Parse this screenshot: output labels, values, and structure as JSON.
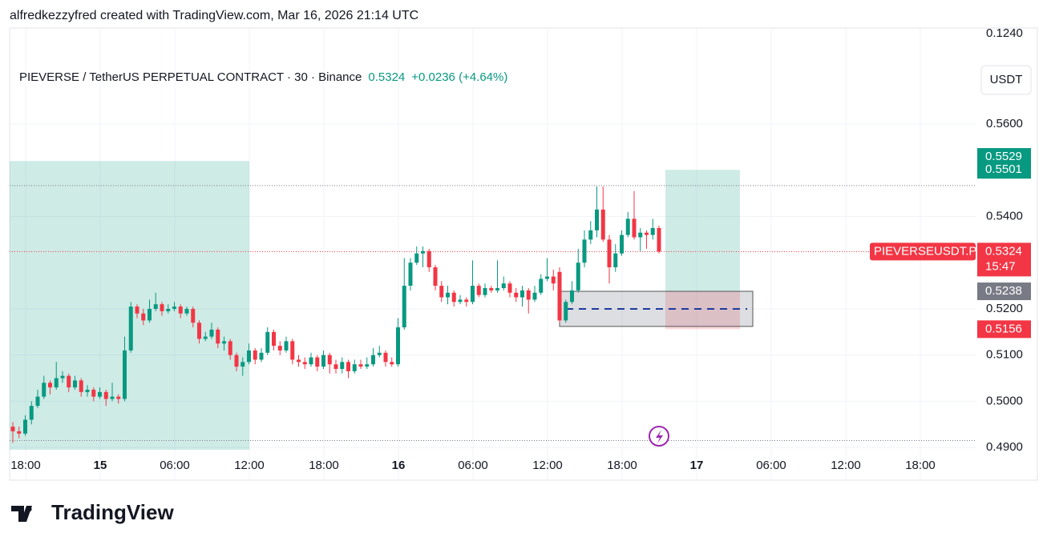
{
  "attribution": "alfredkezzyfred created with TradingView.com, Mar 16, 2026 21:14 UTC",
  "brand": "TradingView",
  "currency_button": "USDT",
  "top_label": "0.1240",
  "chart_data": {
    "type": "candlestick",
    "title": "PIEVERSE / TetherUS PERPETUAL CONTRACT · 30 · Binance",
    "last_price": "0.5324",
    "change": "+0.0236 (+4.64%)",
    "up_color": "#089981",
    "down_color": "#f23645",
    "categories": [
      "18:00",
      "15",
      "06:00",
      "12:00",
      "18:00",
      "16",
      "06:00",
      "12:00",
      "18:00",
      "17",
      "06:00",
      "12:00",
      "18:00"
    ],
    "bold_categories": [
      "15",
      "16",
      "17"
    ],
    "ylim": [
      0.4895,
      0.5808
    ],
    "yticks": [
      {
        "value": 0.56,
        "label": "0.5600"
      },
      {
        "value": 0.54,
        "label": "0.5400"
      },
      {
        "value": 0.52,
        "label": "0.5200"
      },
      {
        "value": 0.51,
        "label": "0.5100"
      },
      {
        "value": 0.5,
        "label": "0.5000"
      },
      {
        "value": 0.49,
        "label": "0.4900"
      }
    ],
    "grid": true,
    "dotted_lines": [
      0.5467,
      0.4915
    ],
    "zones": [
      {
        "top": 0.552,
        "bottom": 0.4895,
        "color": "#089981"
      },
      {
        "top": 0.5501,
        "bottom": 0.5238,
        "color": "#089981"
      },
      {
        "top": 0.5238,
        "bottom": 0.5156,
        "color": "#f23645"
      }
    ],
    "range_box": {
      "top": 0.5238,
      "bottom": 0.5162,
      "mid": 0.52
    },
    "price_labels": [
      {
        "value": 0.5529,
        "color": "#089981"
      },
      {
        "value": 0.5501,
        "color": "#089981"
      },
      {
        "value": 0.5238,
        "color": "#787b86"
      },
      {
        "value": 0.5156,
        "color": "#f23645"
      }
    ],
    "symbol_label": "PIEVERSEUSDT.P",
    "countdown": "15:47",
    "current_price": 0.5324,
    "candles": [
      [
        0.4945,
        0.4955,
        0.491,
        0.4935
      ],
      [
        0.4935,
        0.4945,
        0.492,
        0.493
      ],
      [
        0.493,
        0.497,
        0.4925,
        0.496
      ],
      [
        0.496,
        0.5,
        0.495,
        0.499
      ],
      [
        0.499,
        0.5025,
        0.4985,
        0.501
      ],
      [
        0.501,
        0.5055,
        0.5005,
        0.504
      ],
      [
        0.504,
        0.5045,
        0.5015,
        0.503
      ],
      [
        0.503,
        0.5085,
        0.5025,
        0.505
      ],
      [
        0.505,
        0.5065,
        0.504,
        0.5055
      ],
      [
        0.5055,
        0.506,
        0.502,
        0.503
      ],
      [
        0.503,
        0.5055,
        0.5025,
        0.5045
      ],
      [
        0.5045,
        0.505,
        0.501,
        0.502
      ],
      [
        0.502,
        0.5035,
        0.501,
        0.5025
      ],
      [
        0.5025,
        0.503,
        0.5,
        0.501
      ],
      [
        0.501,
        0.503,
        0.5005,
        0.502
      ],
      [
        0.502,
        0.5025,
        0.499,
        0.5005
      ],
      [
        0.5005,
        0.504,
        0.5,
        0.501
      ],
      [
        0.501,
        0.5015,
        0.4995,
        0.5005
      ],
      [
        0.5005,
        0.514,
        0.5,
        0.511
      ],
      [
        0.511,
        0.5215,
        0.5105,
        0.5205
      ],
      [
        0.5205,
        0.521,
        0.518,
        0.519
      ],
      [
        0.519,
        0.52,
        0.5165,
        0.5175
      ],
      [
        0.5175,
        0.522,
        0.517,
        0.52
      ],
      [
        0.52,
        0.5235,
        0.5195,
        0.521
      ],
      [
        0.521,
        0.5215,
        0.5185,
        0.5195
      ],
      [
        0.5195,
        0.521,
        0.519,
        0.52
      ],
      [
        0.52,
        0.5215,
        0.5195,
        0.5205
      ],
      [
        0.5205,
        0.521,
        0.518,
        0.519
      ],
      [
        0.519,
        0.5205,
        0.5185,
        0.52
      ],
      [
        0.52,
        0.5205,
        0.516,
        0.517
      ],
      [
        0.517,
        0.5175,
        0.5125,
        0.5135
      ],
      [
        0.5135,
        0.515,
        0.513,
        0.514
      ],
      [
        0.514,
        0.517,
        0.5135,
        0.5155
      ],
      [
        0.5155,
        0.516,
        0.5115,
        0.5125
      ],
      [
        0.5125,
        0.514,
        0.511,
        0.513
      ],
      [
        0.513,
        0.5135,
        0.509,
        0.51
      ],
      [
        0.51,
        0.5105,
        0.5065,
        0.5075
      ],
      [
        0.5075,
        0.5095,
        0.5055,
        0.5085
      ],
      [
        0.5085,
        0.5125,
        0.508,
        0.511
      ],
      [
        0.511,
        0.5115,
        0.508,
        0.509
      ],
      [
        0.509,
        0.5115,
        0.5085,
        0.5105
      ],
      [
        0.5105,
        0.516,
        0.51,
        0.515
      ],
      [
        0.515,
        0.5155,
        0.511,
        0.512
      ],
      [
        0.512,
        0.513,
        0.51,
        0.511
      ],
      [
        0.511,
        0.514,
        0.5105,
        0.513
      ],
      [
        0.513,
        0.5135,
        0.508,
        0.509
      ],
      [
        0.509,
        0.51,
        0.5075,
        0.5085
      ],
      [
        0.5085,
        0.5095,
        0.507,
        0.508
      ],
      [
        0.508,
        0.5105,
        0.5075,
        0.5095
      ],
      [
        0.5095,
        0.51,
        0.5065,
        0.5075
      ],
      [
        0.5075,
        0.511,
        0.507,
        0.51
      ],
      [
        0.51,
        0.5105,
        0.506,
        0.508
      ],
      [
        0.508,
        0.509,
        0.506,
        0.507
      ],
      [
        0.507,
        0.5095,
        0.506,
        0.5085
      ],
      [
        0.5085,
        0.509,
        0.505,
        0.5065
      ],
      [
        0.5065,
        0.509,
        0.506,
        0.508
      ],
      [
        0.508,
        0.509,
        0.507,
        0.5075
      ],
      [
        0.5075,
        0.5095,
        0.507,
        0.508
      ],
      [
        0.508,
        0.5115,
        0.5075,
        0.51
      ],
      [
        0.51,
        0.512,
        0.5095,
        0.5105
      ],
      [
        0.5105,
        0.511,
        0.5075,
        0.5085
      ],
      [
        0.5085,
        0.5095,
        0.5075,
        0.508
      ],
      [
        0.508,
        0.518,
        0.5075,
        0.516
      ],
      [
        0.516,
        0.531,
        0.5155,
        0.525
      ],
      [
        0.525,
        0.531,
        0.524,
        0.53
      ],
      [
        0.53,
        0.5335,
        0.5295,
        0.532
      ],
      [
        0.532,
        0.5335,
        0.529,
        0.5325
      ],
      [
        0.5325,
        0.533,
        0.528,
        0.529
      ],
      [
        0.529,
        0.5295,
        0.524,
        0.525
      ],
      [
        0.525,
        0.526,
        0.5215,
        0.5225
      ],
      [
        0.5225,
        0.525,
        0.521,
        0.5235
      ],
      [
        0.5235,
        0.524,
        0.5205,
        0.5215
      ],
      [
        0.5215,
        0.523,
        0.521,
        0.522
      ],
      [
        0.522,
        0.5225,
        0.5205,
        0.5215
      ],
      [
        0.5215,
        0.5305,
        0.521,
        0.525
      ],
      [
        0.525,
        0.5255,
        0.5225,
        0.523
      ],
      [
        0.523,
        0.5255,
        0.5225,
        0.5245
      ],
      [
        0.5245,
        0.525,
        0.5235,
        0.524
      ],
      [
        0.524,
        0.5305,
        0.5235,
        0.5245
      ],
      [
        0.5245,
        0.527,
        0.524,
        0.5255
      ],
      [
        0.5255,
        0.526,
        0.5225,
        0.5235
      ],
      [
        0.5235,
        0.5245,
        0.5215,
        0.5225
      ],
      [
        0.5225,
        0.525,
        0.5205,
        0.524
      ],
      [
        0.524,
        0.5245,
        0.519,
        0.522
      ],
      [
        0.522,
        0.525,
        0.5215,
        0.5235
      ],
      [
        0.5235,
        0.5275,
        0.523,
        0.5265
      ],
      [
        0.5265,
        0.531,
        0.526,
        0.527
      ],
      [
        0.527,
        0.5285,
        0.524,
        0.5255
      ],
      [
        0.528,
        0.529,
        0.517,
        0.5175
      ],
      [
        0.5175,
        0.522,
        0.517,
        0.5215
      ],
      [
        0.5215,
        0.526,
        0.521,
        0.524
      ],
      [
        0.524,
        0.533,
        0.5235,
        0.53
      ],
      [
        0.53,
        0.537,
        0.529,
        0.535
      ],
      [
        0.535,
        0.539,
        0.534,
        0.537
      ],
      [
        0.537,
        0.5465,
        0.5355,
        0.5415
      ],
      [
        0.5415,
        0.5465,
        0.5345,
        0.535
      ],
      [
        0.535,
        0.536,
        0.5255,
        0.529
      ],
      [
        0.529,
        0.534,
        0.528,
        0.532
      ],
      [
        0.532,
        0.537,
        0.5315,
        0.536
      ],
      [
        0.536,
        0.541,
        0.5355,
        0.5395
      ],
      [
        0.5395,
        0.5455,
        0.535,
        0.5355
      ],
      [
        0.5355,
        0.5375,
        0.5325,
        0.5365
      ],
      [
        0.5365,
        0.537,
        0.533,
        0.536
      ],
      [
        0.536,
        0.5395,
        0.535,
        0.5375
      ],
      [
        0.5375,
        0.538,
        0.532,
        0.5324
      ]
    ]
  }
}
